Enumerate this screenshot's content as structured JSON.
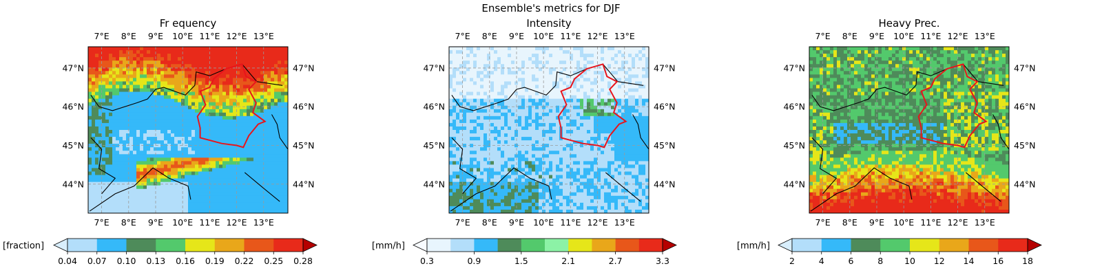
{
  "figure": {
    "suptitle": "Ensemble's metrics for DJF"
  },
  "map_labels": {
    "lon_ticks": [
      "7°E",
      "8°E",
      "9°E",
      "10°E",
      "11°E",
      "12°E",
      "13°E"
    ],
    "lat_ticks": [
      "47°N",
      "46°N",
      "45°N",
      "44°N"
    ]
  },
  "chart_data": [
    {
      "type": "heatmap",
      "title": "Fr equency",
      "colorbar": {
        "label": "[fraction]",
        "ticks": [
          "0.04",
          "0.07",
          "0.10",
          "0.13",
          "0.16",
          "0.19",
          "0.22",
          "0.25",
          "0.28"
        ],
        "colors": [
          "#b3defa",
          "#35b9f9",
          "#4e8b5a",
          "#53c96c",
          "#e6e619",
          "#e9a71a",
          "#e8571a",
          "#e82a1a"
        ],
        "extend_colors": [
          "#d8eefc",
          "#b50000"
        ]
      },
      "grid": true,
      "overlay": "red region outline"
    },
    {
      "type": "heatmap",
      "title": "Intensity",
      "colorbar": {
        "label": "[mm/h]",
        "ticks": [
          "0.3",
          "0.9",
          "1.5",
          "2.1",
          "2.7",
          "3.3"
        ],
        "colors": [
          "#e8f5fd",
          "#b3defa",
          "#35b9f9",
          "#4e8b5a",
          "#53c96c",
          "#8cf2a6",
          "#e6e619",
          "#e9a71a",
          "#e8571a",
          "#e82a1a"
        ],
        "extend_colors": [
          "#f7fbff",
          "#b50000"
        ]
      },
      "grid": true,
      "overlay": "red region outline"
    },
    {
      "type": "heatmap",
      "title": "Heavy Prec.",
      "colorbar": {
        "label": "[mm/h]",
        "ticks": [
          "2",
          "4",
          "6",
          "8",
          "10",
          "12",
          "14",
          "16",
          "18"
        ],
        "colors": [
          "#b3defa",
          "#35b9f9",
          "#4e8b5a",
          "#53c96c",
          "#e6e619",
          "#e9a71a",
          "#e8571a",
          "#e82a1a"
        ],
        "extend_colors": [
          "#d8eefc",
          "#b50000"
        ]
      },
      "grid": true,
      "overlay": "red region outline"
    }
  ]
}
